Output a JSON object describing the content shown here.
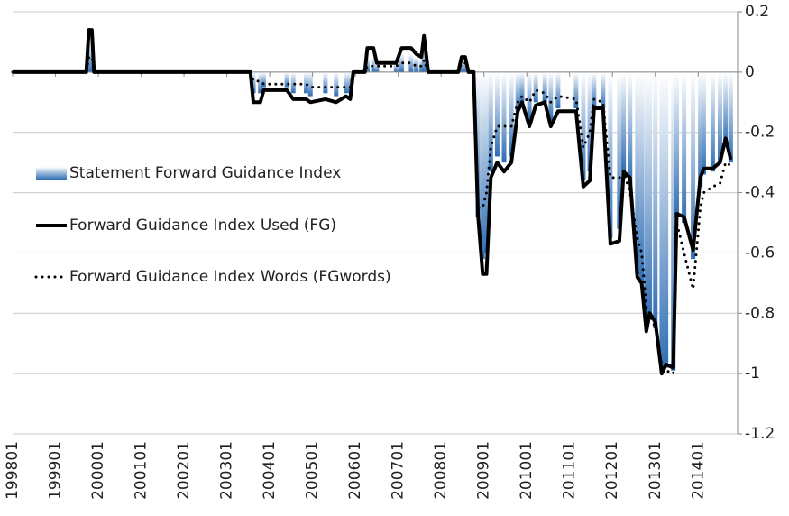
{
  "chart_data": {
    "type": "bar",
    "x": [
      1998.0,
      1999.72,
      1999.78,
      1999.85,
      1999.9,
      2003.55,
      2003.62,
      2003.78,
      2003.86,
      2004.4,
      2004.55,
      2004.85,
      2004.95,
      2005.3,
      2005.55,
      2005.78,
      2005.88,
      2005.95,
      2006.22,
      2006.28,
      2006.42,
      2006.5,
      2006.95,
      2007.08,
      2007.3,
      2007.42,
      2007.54,
      2007.6,
      2007.7,
      2008.4,
      2008.48,
      2008.56,
      2008.64,
      2008.76,
      2008.86,
      2008.97,
      2009.06,
      2009.16,
      2009.31,
      2009.47,
      2009.64,
      2009.79,
      2009.89,
      2010.06,
      2010.21,
      2010.42,
      2010.56,
      2010.73,
      2011.15,
      2011.32,
      2011.47,
      2011.57,
      2011.78,
      2011.95,
      2012.16,
      2012.26,
      2012.41,
      2012.58,
      2012.68,
      2012.79,
      2012.87,
      2013.0,
      2013.15,
      2013.25,
      2013.42,
      2013.5,
      2013.67,
      2013.88,
      2014.05,
      2014.13,
      2014.34,
      2014.51,
      2014.64,
      2014.76
    ],
    "series": [
      {
        "name": "Statement Forward Guidance Index",
        "type": "bar",
        "color": "#2e6db4",
        "values": [
          0,
          0,
          0.1,
          0.1,
          0,
          0,
          -0.07,
          -0.07,
          -0.05,
          -0.05,
          -0.07,
          -0.07,
          -0.08,
          -0.07,
          -0.08,
          -0.07,
          -0.07,
          0,
          0,
          0.05,
          0.05,
          0.03,
          0.03,
          0.06,
          0.06,
          0.05,
          0.04,
          0.08,
          0,
          0,
          0.04,
          0.04,
          0,
          0,
          -0.48,
          -0.62,
          -0.6,
          -0.33,
          -0.28,
          -0.3,
          -0.28,
          -0.13,
          -0.1,
          -0.16,
          -0.1,
          -0.1,
          -0.16,
          -0.12,
          -0.12,
          -0.36,
          -0.33,
          -0.12,
          -0.12,
          -0.55,
          -0.52,
          -0.33,
          -0.37,
          -0.67,
          -0.7,
          -0.84,
          -0.82,
          -0.85,
          -1.0,
          -0.98,
          -0.99,
          -0.48,
          -0.5,
          -0.62,
          -0.38,
          -0.34,
          -0.33,
          -0.3,
          -0.24,
          -0.3
        ]
      },
      {
        "name": "Forward Guidance Index Used (FG)",
        "type": "line",
        "style": "solid",
        "color": "#000000",
        "values": [
          0,
          0,
          0.14,
          0.14,
          0,
          0,
          -0.1,
          -0.1,
          -0.06,
          -0.06,
          -0.09,
          -0.09,
          -0.1,
          -0.09,
          -0.1,
          -0.08,
          -0.09,
          0,
          0,
          0.08,
          0.08,
          0.03,
          0.03,
          0.08,
          0.08,
          0.06,
          0.05,
          0.12,
          0,
          0,
          0.05,
          0.05,
          0,
          0,
          -0.47,
          -0.67,
          -0.67,
          -0.35,
          -0.3,
          -0.33,
          -0.3,
          -0.13,
          -0.1,
          -0.18,
          -0.11,
          -0.1,
          -0.18,
          -0.13,
          -0.13,
          -0.38,
          -0.36,
          -0.12,
          -0.12,
          -0.57,
          -0.56,
          -0.33,
          -0.35,
          -0.68,
          -0.7,
          -0.86,
          -0.8,
          -0.83,
          -1.0,
          -0.97,
          -0.98,
          -0.47,
          -0.48,
          -0.59,
          -0.35,
          -0.32,
          -0.32,
          -0.3,
          -0.22,
          -0.29
        ]
      },
      {
        "name": "Forward Guidance Index Words (FGwords)",
        "type": "line",
        "style": "dotted",
        "color": "#000000",
        "values": [
          0,
          0,
          0.05,
          0.05,
          0,
          0,
          -0.03,
          -0.03,
          -0.04,
          -0.04,
          -0.04,
          -0.04,
          -0.05,
          -0.05,
          -0.05,
          -0.05,
          -0.05,
          0,
          0,
          0.02,
          0.02,
          0.02,
          0.02,
          0.03,
          0.03,
          0.02,
          0.02,
          0.04,
          0,
          0,
          0.03,
          0.03,
          0,
          0,
          -0.45,
          -0.45,
          -0.4,
          -0.25,
          -0.18,
          -0.18,
          -0.18,
          -0.1,
          -0.08,
          -0.1,
          -0.06,
          -0.07,
          -0.1,
          -0.08,
          -0.09,
          -0.25,
          -0.2,
          -0.09,
          -0.1,
          -0.35,
          -0.35,
          -0.33,
          -0.4,
          -0.55,
          -0.6,
          -0.78,
          -0.8,
          -0.85,
          -0.97,
          -0.99,
          -1.0,
          -0.5,
          -0.6,
          -0.72,
          -0.45,
          -0.4,
          -0.38,
          -0.37,
          -0.3,
          -0.31
        ]
      }
    ],
    "xlim": [
      1998,
      2014.92
    ],
    "xticks": [
      {
        "value": 1998,
        "label": "199801"
      },
      {
        "value": 1999,
        "label": "199901"
      },
      {
        "value": 2000,
        "label": "200001"
      },
      {
        "value": 2001,
        "label": "200101"
      },
      {
        "value": 2002,
        "label": "200201"
      },
      {
        "value": 2003,
        "label": "200301"
      },
      {
        "value": 2004,
        "label": "200401"
      },
      {
        "value": 2005,
        "label": "200501"
      },
      {
        "value": 2006,
        "label": "200601"
      },
      {
        "value": 2007,
        "label": "200701"
      },
      {
        "value": 2008,
        "label": "200801"
      },
      {
        "value": 2009,
        "label": "200901"
      },
      {
        "value": 2010,
        "label": "201001"
      },
      {
        "value": 2011,
        "label": "201101"
      },
      {
        "value": 2012,
        "label": "201201"
      },
      {
        "value": 2013,
        "label": "201301"
      },
      {
        "value": 2014,
        "label": "201401"
      }
    ],
    "ylim": [
      -1.2,
      0.2
    ],
    "yticks": [
      0.2,
      0,
      -0.2,
      -0.4,
      -0.6,
      -0.8,
      -1,
      -1.2
    ],
    "grid": true
  }
}
